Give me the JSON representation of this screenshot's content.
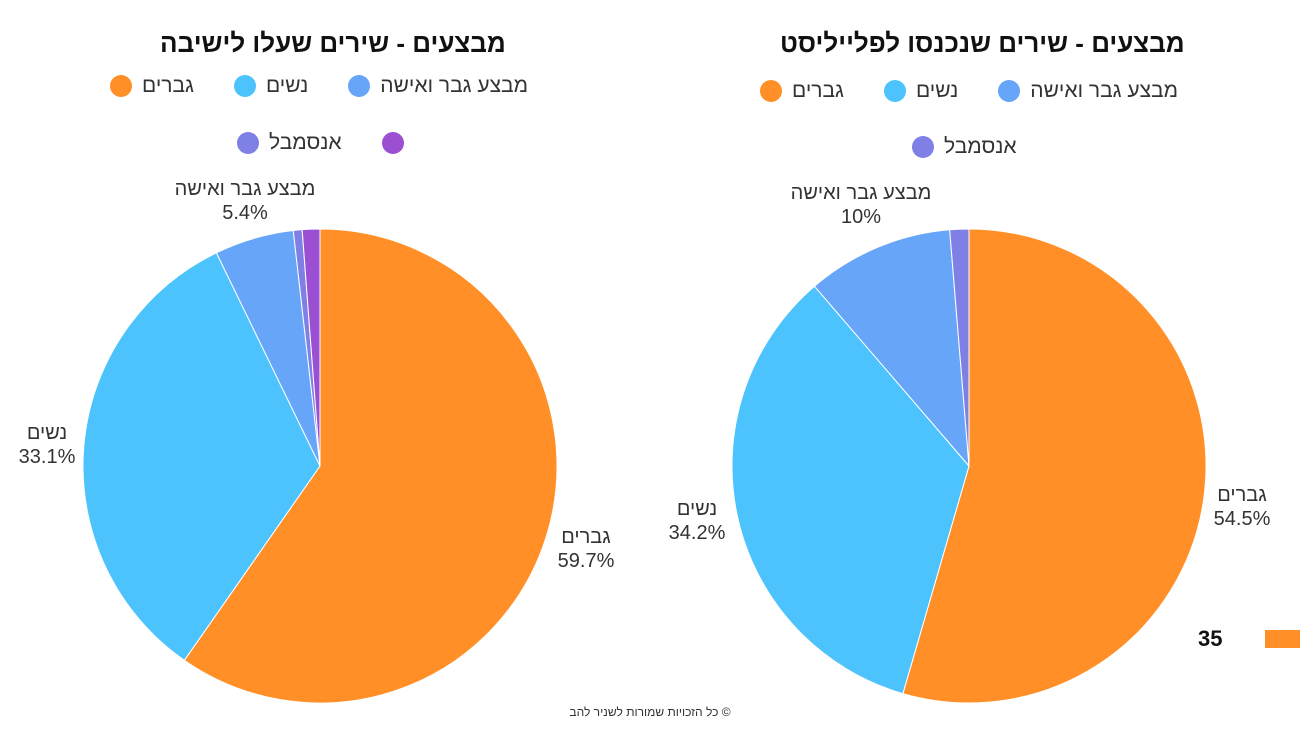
{
  "chart_data": [
    {
      "type": "pie",
      "title": "מבצעים - שירים שעלו לישיבה",
      "categories": [
        "גברים",
        "נשים",
        "מבצע גבר ואישה",
        "אנסמבל",
        ""
      ],
      "values": [
        59.7,
        33.1,
        5.4,
        0.6,
        1.2
      ],
      "colors": [
        "#FF8F26",
        "#4CC3FC",
        "#66A5F8",
        "#7F80E6",
        "#9B50D4"
      ],
      "data_labels": [
        {
          "name": "גברים",
          "value": "59.7%"
        },
        {
          "name": "נשים",
          "value": "33.1%"
        },
        {
          "name": "מבצע גבר ואישה",
          "value": "5.4%"
        }
      ],
      "legend": [
        "גברים",
        "נשים",
        "מבצע גבר ואישה",
        "אנסמבל",
        ""
      ],
      "legend_placement": "top"
    },
    {
      "type": "pie",
      "title": "מבצעים - שירים שנכנסו לפלייליסט",
      "categories": [
        "גברים",
        "נשים",
        "מבצע גבר ואישה",
        "אנסמבל"
      ],
      "values": [
        54.5,
        34.2,
        10,
        1.3
      ],
      "colors": [
        "#FF8F26",
        "#4CC3FC",
        "#66A5F8",
        "#7F80E6"
      ],
      "data_labels": [
        {
          "name": "גברים",
          "value": "54.5%"
        },
        {
          "name": "נשים",
          "value": "34.2%"
        },
        {
          "name": "מבצע גבר ואישה",
          "value": "10%"
        }
      ],
      "legend": [
        "גברים",
        "נשים",
        "מבצע גבר ואישה",
        "אנסמבל"
      ],
      "legend_placement": "top"
    }
  ],
  "footer": "© כל הזכויות שמורות לשניר להב",
  "extra": {
    "value": "35",
    "color": "#FF8F26"
  }
}
